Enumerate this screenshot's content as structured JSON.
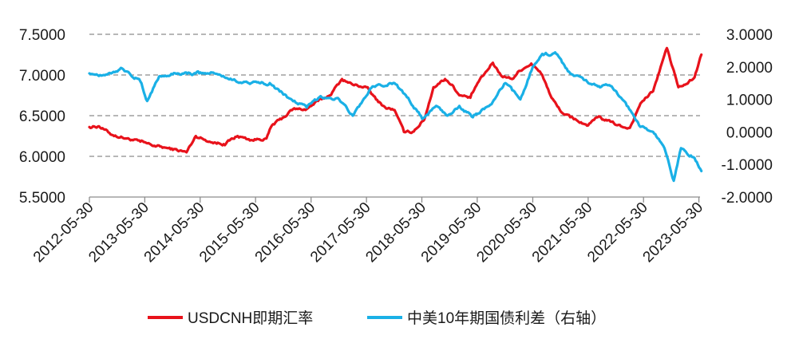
{
  "chart_data": {
    "type": "line",
    "x_tick_labels": [
      "2012-05-30",
      "2013-05-30",
      "2014-05-30",
      "2015-05-30",
      "2016-05-30",
      "2017-05-30",
      "2018-05-30",
      "2019-05-30",
      "2020-05-30",
      "2021-05-30",
      "2022-05-30",
      "2023-05-30"
    ],
    "y_left": {
      "ylim": [
        5.5,
        7.5
      ],
      "ticks": [
        "5.5000",
        "6.0000",
        "6.5000",
        "7.0000",
        "7.5000"
      ]
    },
    "y_right": {
      "ylim": [
        -2.0,
        3.0
      ],
      "ticks": [
        "-2.0000",
        "-1.0000",
        "0.0000",
        "1.0000",
        "2.0000",
        "3.0000"
      ]
    },
    "grid": "horizontal dashed",
    "legend_position": "bottom",
    "series": [
      {
        "name": "USDCNH即期汇率",
        "axis": "left",
        "color": "#e8121b",
        "x": [
          "2012-05-30",
          "2012-08-01",
          "2012-11-01",
          "2013-02-01",
          "2013-05-01",
          "2013-08-01",
          "2013-11-01",
          "2014-01-15",
          "2014-03-01",
          "2014-05-01",
          "2014-08-01",
          "2014-11-01",
          "2015-02-01",
          "2015-05-01",
          "2015-08-10",
          "2015-09-15",
          "2015-12-01",
          "2016-02-01",
          "2016-05-01",
          "2016-07-15",
          "2016-10-01",
          "2016-12-20",
          "2017-03-01",
          "2017-05-30",
          "2017-08-01",
          "2017-10-01",
          "2017-12-01",
          "2018-02-01",
          "2018-03-30",
          "2018-06-15",
          "2018-08-15",
          "2018-10-30",
          "2018-12-15",
          "2019-02-01",
          "2019-04-15",
          "2019-06-01",
          "2019-08-01",
          "2019-09-10",
          "2019-11-01",
          "2020-01-15",
          "2020-03-01",
          "2020-05-20",
          "2020-08-01",
          "2020-10-01",
          "2020-12-01",
          "2021-02-01",
          "2021-05-30",
          "2021-08-01",
          "2021-10-01",
          "2022-01-01",
          "2022-03-01",
          "2022-05-10",
          "2022-08-01",
          "2022-09-20",
          "2022-10-31",
          "2023-01-15",
          "2023-03-01",
          "2023-05-01",
          "2023-06-15"
        ],
        "values": [
          6.36,
          6.37,
          6.26,
          6.22,
          6.18,
          6.13,
          6.1,
          6.07,
          6.05,
          6.25,
          6.18,
          6.15,
          6.25,
          6.2,
          6.22,
          6.38,
          6.48,
          6.58,
          6.58,
          6.68,
          6.75,
          6.95,
          6.88,
          6.85,
          6.7,
          6.6,
          6.57,
          6.3,
          6.3,
          6.45,
          6.85,
          6.95,
          6.88,
          6.75,
          6.72,
          6.9,
          7.05,
          7.15,
          7.0,
          6.95,
          7.05,
          7.14,
          7.0,
          6.72,
          6.55,
          6.48,
          6.38,
          6.48,
          6.44,
          6.37,
          6.35,
          6.65,
          6.8,
          7.1,
          7.33,
          6.85,
          6.88,
          6.97,
          7.25
        ]
      },
      {
        "name": "中美10年期国债利差（右轴）",
        "axis": "right",
        "color": "#1ab0e6",
        "x": [
          "2012-05-30",
          "2012-09-01",
          "2013-01-01",
          "2013-05-01",
          "2013-06-15",
          "2013-09-01",
          "2014-01-01",
          "2014-05-01",
          "2014-09-01",
          "2015-01-01",
          "2015-05-01",
          "2015-09-01",
          "2016-01-01",
          "2016-05-01",
          "2016-08-01",
          "2016-12-01",
          "2017-03-01",
          "2017-07-01",
          "2017-12-01",
          "2018-03-01",
          "2018-06-01",
          "2018-09-01",
          "2018-11-15",
          "2019-02-01",
          "2019-05-01",
          "2019-07-15",
          "2019-09-01",
          "2019-12-01",
          "2020-03-09",
          "2020-05-30",
          "2020-08-01",
          "2020-11-01",
          "2021-02-01",
          "2021-05-01",
          "2021-08-01",
          "2021-11-01",
          "2022-02-01",
          "2022-05-01",
          "2022-08-01",
          "2022-10-15",
          "2022-12-15",
          "2023-02-01",
          "2023-05-01",
          "2023-06-15"
        ],
        "values": [
          1.8,
          1.75,
          1.95,
          1.55,
          0.95,
          1.7,
          1.8,
          1.8,
          1.8,
          1.6,
          1.5,
          1.5,
          1.05,
          0.75,
          1.1,
          1.0,
          0.5,
          1.35,
          1.5,
          1.05,
          0.4,
          0.8,
          0.5,
          0.8,
          0.45,
          0.7,
          0.85,
          1.5,
          1.0,
          2.0,
          2.4,
          2.4,
          1.8,
          1.6,
          1.4,
          1.4,
          0.9,
          0.2,
          0.0,
          -0.5,
          -1.5,
          -0.5,
          -0.8,
          -1.2
        ]
      }
    ]
  }
}
